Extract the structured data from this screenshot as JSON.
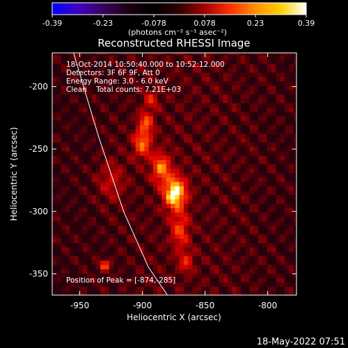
{
  "colorbar": {
    "ticks": [
      "-0.39",
      "-0.23",
      "-0.078",
      "0.078",
      "0.23",
      "0.39"
    ],
    "unit_label": "(photons cm⁻² s⁻¹ asec⁻²)",
    "colormap": [
      "#0000ff",
      "#4000c0",
      "#3a0060",
      "#1a0010",
      "#000000",
      "#300000",
      "#a00000",
      "#ff3000",
      "#ff9000",
      "#ffd000",
      "#ffffff"
    ]
  },
  "chart_data": {
    "type": "heatmap",
    "title": "Reconstructed RHESSI Image",
    "xlabel": "Heliocentric X (arcsec)",
    "ylabel": "Heliocentric Y (arcsec)",
    "xlim": [
      -972,
      -777
    ],
    "ylim": [
      -367,
      -173
    ],
    "x_ticks": [
      -950,
      -900,
      -850,
      -800
    ],
    "y_ticks": [
      -200,
      -250,
      -300,
      -350
    ],
    "x_tick_labels": [
      "-950",
      "-900",
      "-850",
      "-800"
    ],
    "y_tick_labels": [
      "-200",
      "-250",
      "-300",
      "-350"
    ],
    "peak": {
      "x": -874,
      "y": -285,
      "value": 0.39
    },
    "sources": [
      {
        "x": -874,
        "y": -285,
        "amp": 1.0,
        "sx": 6,
        "sy": 9
      },
      {
        "x": -885,
        "y": -265,
        "amp": 0.65,
        "sx": 5,
        "sy": 8
      },
      {
        "x": -900,
        "y": -245,
        "amp": 0.6,
        "sx": 5,
        "sy": 8
      },
      {
        "x": -897,
        "y": -228,
        "amp": 0.5,
        "sx": 4,
        "sy": 6
      },
      {
        "x": -893,
        "y": -210,
        "amp": 0.35,
        "sx": 4,
        "sy": 5
      },
      {
        "x": -870,
        "y": -315,
        "amp": 0.45,
        "sx": 5,
        "sy": 10
      },
      {
        "x": -865,
        "y": -340,
        "amp": 0.35,
        "sx": 4,
        "sy": 6
      },
      {
        "x": -930,
        "y": -343,
        "amp": 0.55,
        "sx": 3,
        "sy": 3
      },
      {
        "x": -925,
        "y": -275,
        "amp": 0.25,
        "sx": 8,
        "sy": 12
      }
    ],
    "limb_curve": [
      [
        -955,
        -173
      ],
      [
        -935,
        -240
      ],
      [
        -915,
        -300
      ],
      [
        -895,
        -345
      ],
      [
        -880,
        -367
      ]
    ],
    "annotations": {
      "time_range": "18-Oct-2014 10:50:40.000 to 10:52:12.000",
      "detectors": "Detectors: 3F 6F 9F, Att 0",
      "energy_range": "Energy Range: 3.0 - 6.0 keV",
      "clean_counts": "Clean    Total counts: 7.21E+03",
      "peak_position": "Position of Peak = [-874,-285]"
    },
    "timestamp": "18-May-2022 07:51"
  }
}
